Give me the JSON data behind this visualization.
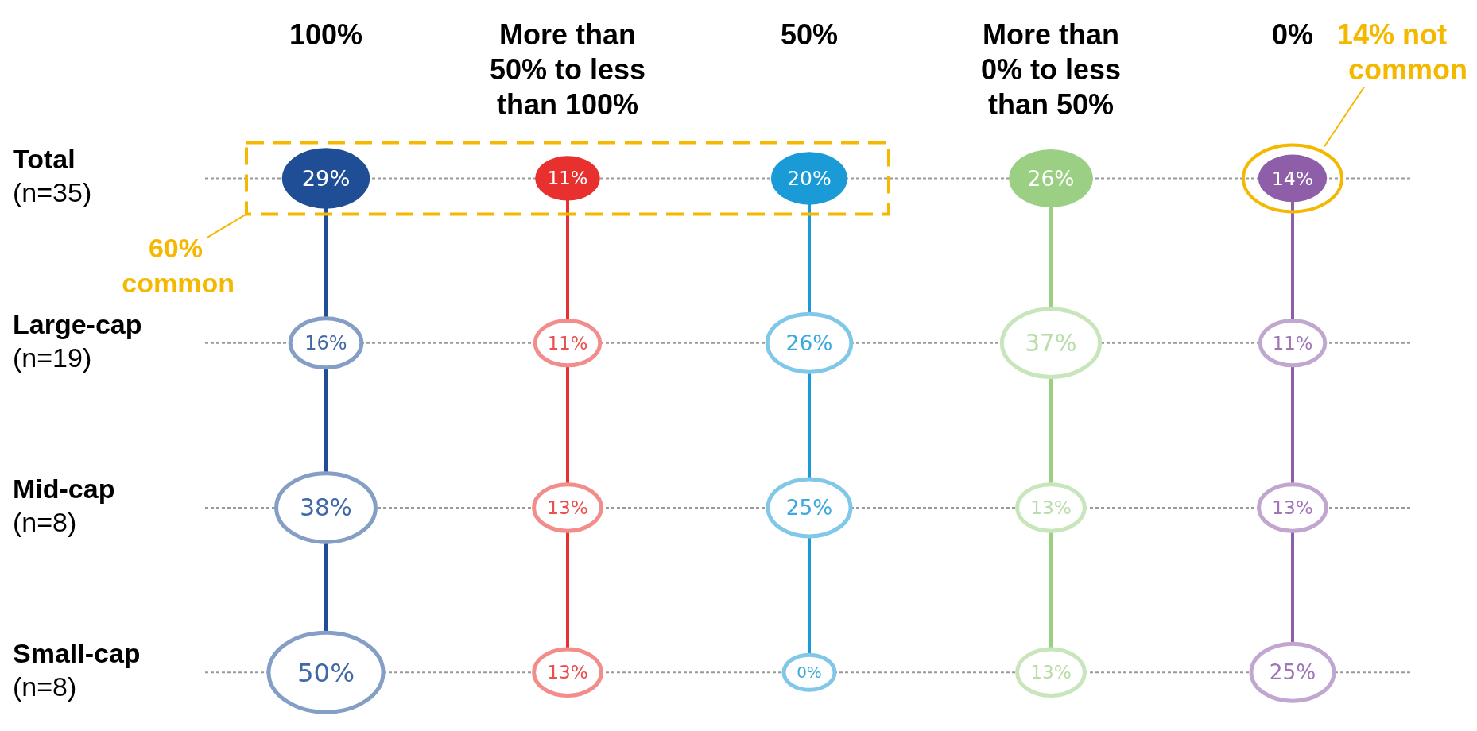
{
  "chart_data": {
    "type": "heatmap",
    "categories": [
      "100%",
      "More than 50% to less than 100%",
      "50%",
      "More than 0% to less than 50%",
      "0%"
    ],
    "y_categories": [
      "Total\n(n=35)",
      "Large-cap\n(n=19)",
      "Mid-cap\n(n=8)",
      "Small-cap\n(n=8)"
    ],
    "cells": [
      [
        29,
        11,
        20,
        26,
        14
      ],
      [
        16,
        11,
        26,
        37,
        11
      ],
      [
        38,
        13,
        25,
        13,
        13
      ],
      [
        50,
        13,
        0,
        13,
        25
      ]
    ],
    "cell_labels": [
      [
        "29%",
        "11%",
        "20%",
        "26%",
        "14%"
      ],
      [
        "16%",
        "11%",
        "26%",
        "37%",
        "11%"
      ],
      [
        "38%",
        "13%",
        "25%",
        "13%",
        "13%"
      ],
      [
        "50%",
        "13%",
        "0%",
        "13%",
        "25%"
      ]
    ],
    "colors": [
      "#1f4e96",
      "#e8302e",
      "#1a9ad6",
      "#9bcf83",
      "#8e5ea8"
    ],
    "annotations": [
      "60% common",
      "14% not common"
    ]
  }
}
